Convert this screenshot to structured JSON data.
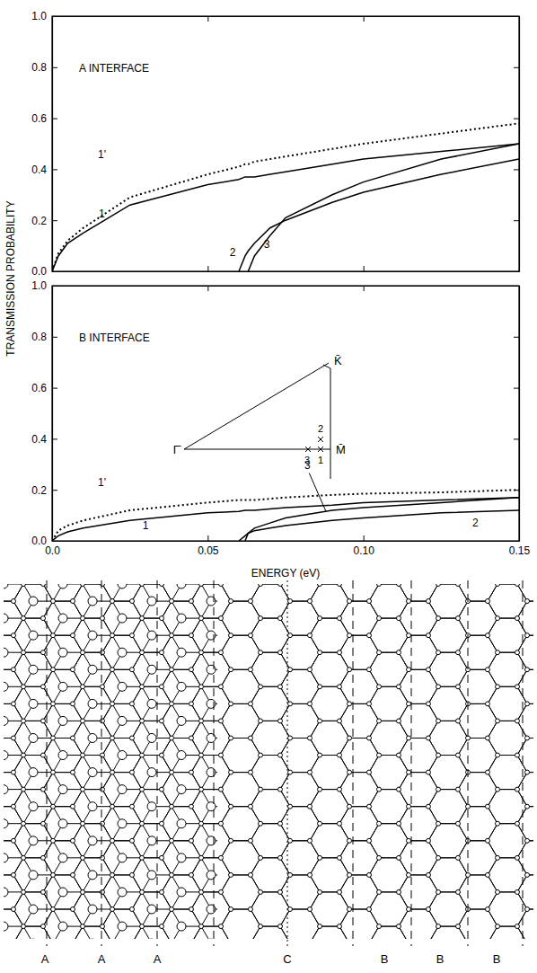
{
  "chart_data": [
    {
      "type": "line",
      "title": "A INTERFACE",
      "y_label": "TRANSMISSION PROBABILITY",
      "tick_labels": "y",
      "xlim": [
        0,
        0.15
      ],
      "xticks": [
        {
          "value": 0,
          "label": "0.0"
        },
        0.05,
        {
          "value": 0.1,
          "label": "0.10"
        },
        0.15
      ],
      "ylim": [
        0,
        1
      ],
      "yticks": [
        {
          "value": 0,
          "label": "0.0"
        },
        0.2,
        0.4,
        0.6,
        0.8,
        {
          "value": 1,
          "label": "1.0"
        }
      ],
      "x": [
        0,
        0.002,
        0.005,
        0.01,
        0.025,
        0.05,
        0.06,
        0.062,
        0.063,
        0.065,
        0.07,
        0.075,
        0.09,
        0.1,
        0.125,
        0.15
      ],
      "series": [
        {
          "name": "1'",
          "color": "#000000",
          "line_style": "dotted",
          "values": [
            0,
            0.07,
            0.12,
            0.17,
            0.29,
            0.38,
            0.41,
            0.42,
            0.42,
            0.43,
            0.44,
            0.45,
            0.48,
            0.5,
            0.54,
            0.58
          ]
        },
        {
          "name": "1",
          "color": "#000000",
          "line_style": "solid",
          "values": [
            0,
            0.06,
            0.11,
            0.15,
            0.26,
            0.34,
            0.36,
            0.37,
            0.37,
            0.37,
            0.38,
            0.39,
            0.42,
            0.44,
            0.47,
            0.5
          ]
        },
        {
          "name": "2",
          "color": "#000000",
          "line_style": "solid",
          "values": [
            null,
            null,
            null,
            null,
            null,
            null,
            0,
            0.06,
            0.08,
            0.11,
            0.17,
            0.2,
            0.27,
            0.31,
            0.38,
            0.44
          ]
        },
        {
          "name": "3",
          "color": "#000000",
          "line_style": "solid",
          "values": [
            null,
            null,
            null,
            null,
            null,
            null,
            null,
            null,
            0,
            0.06,
            0.14,
            0.21,
            0.3,
            0.35,
            0.44,
            0.5
          ]
        }
      ]
    },
    {
      "type": "line",
      "title": "B INTERFACE",
      "x_label": "ENERGY (eV)",
      "xlim": [
        0,
        0.15
      ],
      "xticks": [
        {
          "value": 0,
          "label": "0.0"
        },
        0.05,
        {
          "value": 0.1,
          "label": "0.10"
        },
        0.15
      ],
      "ylim": [
        0,
        1
      ],
      "yticks": [
        {
          "value": 0,
          "label": "0.0"
        },
        0.2,
        0.4,
        0.6,
        0.8,
        {
          "value": 1,
          "label": "1.0"
        }
      ],
      "x": [
        0,
        0.002,
        0.005,
        0.01,
        0.025,
        0.05,
        0.06,
        0.062,
        0.063,
        0.065,
        0.07,
        0.075,
        0.09,
        0.1,
        0.125,
        0.15
      ],
      "series": [
        {
          "name": "1'",
          "color": "#000000",
          "line_style": "dotted",
          "values": [
            0,
            0.04,
            0.06,
            0.08,
            0.12,
            0.15,
            0.16,
            0.16,
            0.16,
            0.16,
            0.165,
            0.17,
            0.18,
            0.185,
            0.19,
            0.2
          ]
        },
        {
          "name": "1",
          "color": "#000000",
          "line_style": "solid",
          "values": [
            0,
            0.02,
            0.035,
            0.05,
            0.08,
            0.11,
            0.115,
            0.12,
            0.12,
            0.12,
            0.125,
            0.13,
            0.14,
            0.15,
            0.16,
            0.17
          ]
        },
        {
          "name": "2",
          "color": "#000000",
          "line_style": "solid",
          "values": [
            null,
            null,
            null,
            null,
            null,
            null,
            0,
            0.02,
            0.03,
            0.04,
            0.05,
            0.06,
            0.08,
            0.09,
            0.11,
            0.12
          ]
        },
        {
          "name": "3",
          "color": "#000000",
          "line_style": "solid",
          "values": [
            null,
            null,
            null,
            null,
            null,
            null,
            null,
            0,
            0.03,
            0.05,
            0.07,
            0.09,
            0.12,
            0.13,
            0.15,
            0.17
          ]
        }
      ],
      "inset": {
        "vertices": [
          "Γ̄",
          "M̄",
          "K̄"
        ],
        "points": [
          "1",
          "2",
          "3"
        ]
      }
    }
  ],
  "diagram": {
    "layer_labels": [
      "A",
      "A",
      "A",
      "C",
      "B",
      "B",
      "B"
    ]
  }
}
